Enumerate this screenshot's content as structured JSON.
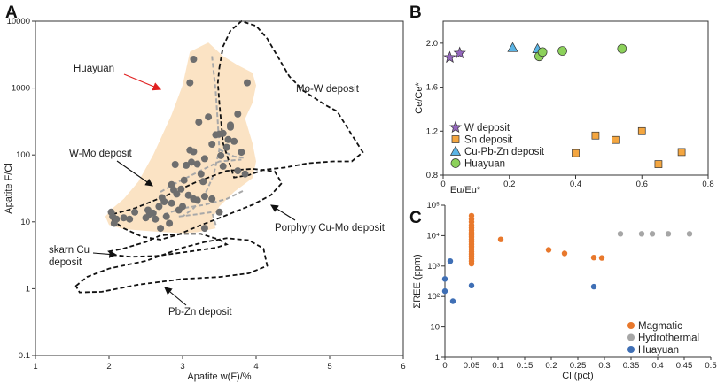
{
  "chart_data": [
    {
      "panel": "A",
      "type": "scatter",
      "xlabel": "Apatite w(F)/%",
      "ylabel": "Apatite F/Cl",
      "xlim": [
        1,
        6
      ],
      "ylim": [
        0.1,
        10000
      ],
      "yscale": "log",
      "x_ticks": [
        "1",
        "2",
        "3",
        "4",
        "5",
        "6"
      ],
      "y_ticks": [
        "0.1",
        "1",
        "10",
        "100",
        "1000",
        "10000"
      ],
      "annotations": [
        "Huayuan",
        "Mo-W deposit",
        "W-Mo deposit",
        "Porphyry Cu-Mo deposit",
        "skarn Cu deposit",
        "Pb-Zn deposit"
      ],
      "colors": {
        "points": "#6e6e6e",
        "field": "#fbe3c4",
        "arrow": "#e02020",
        "boundary": "#111111",
        "internal": "#a8a8a8"
      },
      "series": [
        {
          "name": "Huayuan apatite",
          "points": [
            [
              2.03,
              14
            ],
            [
              2.05,
              12
            ],
            [
              2.07,
              9.5
            ],
            [
              2.1,
              11
            ],
            [
              2.2,
              11.5
            ],
            [
              2.28,
              11
            ],
            [
              2.35,
              14
            ],
            [
              2.5,
              11.5
            ],
            [
              2.53,
              15
            ],
            [
              2.55,
              13
            ],
            [
              2.6,
              13.5
            ],
            [
              2.63,
              11
            ],
            [
              2.68,
              17
            ],
            [
              2.72,
              23
            ],
            [
              2.75,
              20
            ],
            [
              2.7,
              8
            ],
            [
              2.78,
              12
            ],
            [
              2.82,
              9.5
            ],
            [
              2.85,
              36
            ],
            [
              2.88,
              30
            ],
            [
              2.9,
              72
            ],
            [
              2.92,
              26
            ],
            [
              2.95,
              15
            ],
            [
              2.98,
              31
            ],
            [
              3.0,
              17
            ],
            [
              3.02,
              42
            ],
            [
              3.05,
              70
            ],
            [
              3.08,
              25
            ],
            [
              3.1,
              118
            ],
            [
              3.12,
              78
            ],
            [
              3.15,
              112
            ],
            [
              3.2,
              73
            ],
            [
              3.22,
              310
            ],
            [
              3.25,
              52
            ],
            [
              3.28,
              40
            ],
            [
              3.1,
              1200
            ],
            [
              3.15,
              2700
            ],
            [
              3.35,
              370
            ],
            [
              3.4,
              145
            ],
            [
              3.45,
              200
            ],
            [
              3.5,
              205
            ],
            [
              3.52,
              98
            ],
            [
              3.55,
              68
            ],
            [
              3.6,
              130
            ],
            [
              3.62,
              170
            ],
            [
              3.65,
              280
            ],
            [
              3.7,
              160
            ],
            [
              3.75,
              58
            ],
            [
              3.8,
              110
            ],
            [
              3.85,
              52
            ],
            [
              3.3,
              88
            ],
            [
              3.15,
              22
            ],
            [
              3.2,
              21
            ],
            [
              3.3,
              24
            ],
            [
              3.4,
              22
            ],
            [
              3.55,
              210
            ],
            [
              3.65,
              260
            ],
            [
              3.75,
              410
            ],
            [
              3.88,
              1200
            ],
            [
              3.3,
              8
            ],
            [
              3.5,
              14
            ],
            [
              2.85,
              19
            ]
          ]
        }
      ]
    },
    {
      "panel": "B",
      "type": "scatter",
      "xlabel": "Eu/Eu*",
      "ylabel": "Ce/Ce*",
      "xlim": [
        0,
        0.8
      ],
      "ylim": [
        0.8,
        2.2
      ],
      "x_ticks": [
        "0",
        "0.2",
        "0.4",
        "0.6",
        "0.8"
      ],
      "y_ticks": [
        "0.8",
        "1.2",
        "1.6",
        "2.0"
      ],
      "series": [
        {
          "name": "W deposit",
          "marker": "star",
          "color": "#9467bd",
          "points": [
            [
              0.02,
              1.87
            ],
            [
              0.05,
              1.91
            ]
          ]
        },
        {
          "name": "Sn deposit",
          "marker": "square",
          "color": "#f4a640",
          "points": [
            [
              0.4,
              1.0
            ],
            [
              0.46,
              1.16
            ],
            [
              0.52,
              1.12
            ],
            [
              0.6,
              1.2
            ],
            [
              0.65,
              0.9
            ],
            [
              0.72,
              1.01
            ]
          ]
        },
        {
          "name": "Cu-Pb-Zn deposit",
          "marker": "triangle",
          "color": "#5ab4e5",
          "points": [
            [
              0.21,
              1.96
            ],
            [
              0.285,
              1.95
            ]
          ]
        },
        {
          "name": "Huayuan",
          "marker": "circle",
          "color": "#8cd15a",
          "points": [
            [
              0.29,
              1.88
            ],
            [
              0.3,
              1.92
            ],
            [
              0.36,
              1.93
            ],
            [
              0.54,
              1.95
            ]
          ]
        }
      ]
    },
    {
      "panel": "C",
      "type": "scatter",
      "xlabel": "Cl (pct)",
      "ylabel": "ΣREE (ppm)",
      "xlim": [
        0,
        0.5
      ],
      "ylim": [
        1,
        100000
      ],
      "yscale": "log",
      "x_ticks": [
        "0",
        "0.05",
        "0.1",
        "0.15",
        "0.2",
        "0.25",
        "0.3",
        "0.35",
        "0.4",
        "0.45",
        "0.5"
      ],
      "y_ticks": [
        "1",
        "10",
        "10²",
        "10³",
        "10⁴",
        "10⁵"
      ],
      "series": [
        {
          "name": "Magmatic",
          "color": "#e8782c",
          "points": [
            [
              0.05,
              45000
            ],
            [
              0.05,
              35000
            ],
            [
              0.05,
              28000
            ],
            [
              0.05,
              22000
            ],
            [
              0.05,
              18000
            ],
            [
              0.05,
              15000
            ],
            [
              0.05,
              12500
            ],
            [
              0.05,
              10500
            ],
            [
              0.05,
              9000
            ],
            [
              0.05,
              7500
            ],
            [
              0.05,
              6200
            ],
            [
              0.05,
              5200
            ],
            [
              0.05,
              4300
            ],
            [
              0.05,
              3600
            ],
            [
              0.05,
              3000
            ],
            [
              0.05,
              2500
            ],
            [
              0.05,
              2100
            ],
            [
              0.05,
              1750
            ],
            [
              0.05,
              1450
            ],
            [
              0.05,
              1200
            ],
            [
              0.105,
              7500
            ],
            [
              0.195,
              3400
            ],
            [
              0.225,
              2600
            ],
            [
              0.28,
              1900
            ],
            [
              0.295,
              1850
            ]
          ]
        },
        {
          "name": "Hydrothermal",
          "color": "#a6a6a6",
          "points": [
            [
              0.33,
              11500
            ],
            [
              0.37,
              11500
            ],
            [
              0.39,
              11500
            ],
            [
              0.42,
              11500
            ],
            [
              0.46,
              11500
            ]
          ]
        },
        {
          "name": "Huayuan",
          "color": "#3f6fb5",
          "points": [
            [
              0.0,
              380
            ],
            [
              0.0,
              150
            ],
            [
              0.01,
              1450
            ],
            [
              0.015,
              70
            ],
            [
              0.05,
              230
            ],
            [
              0.28,
              210
            ]
          ]
        }
      ]
    }
  ]
}
